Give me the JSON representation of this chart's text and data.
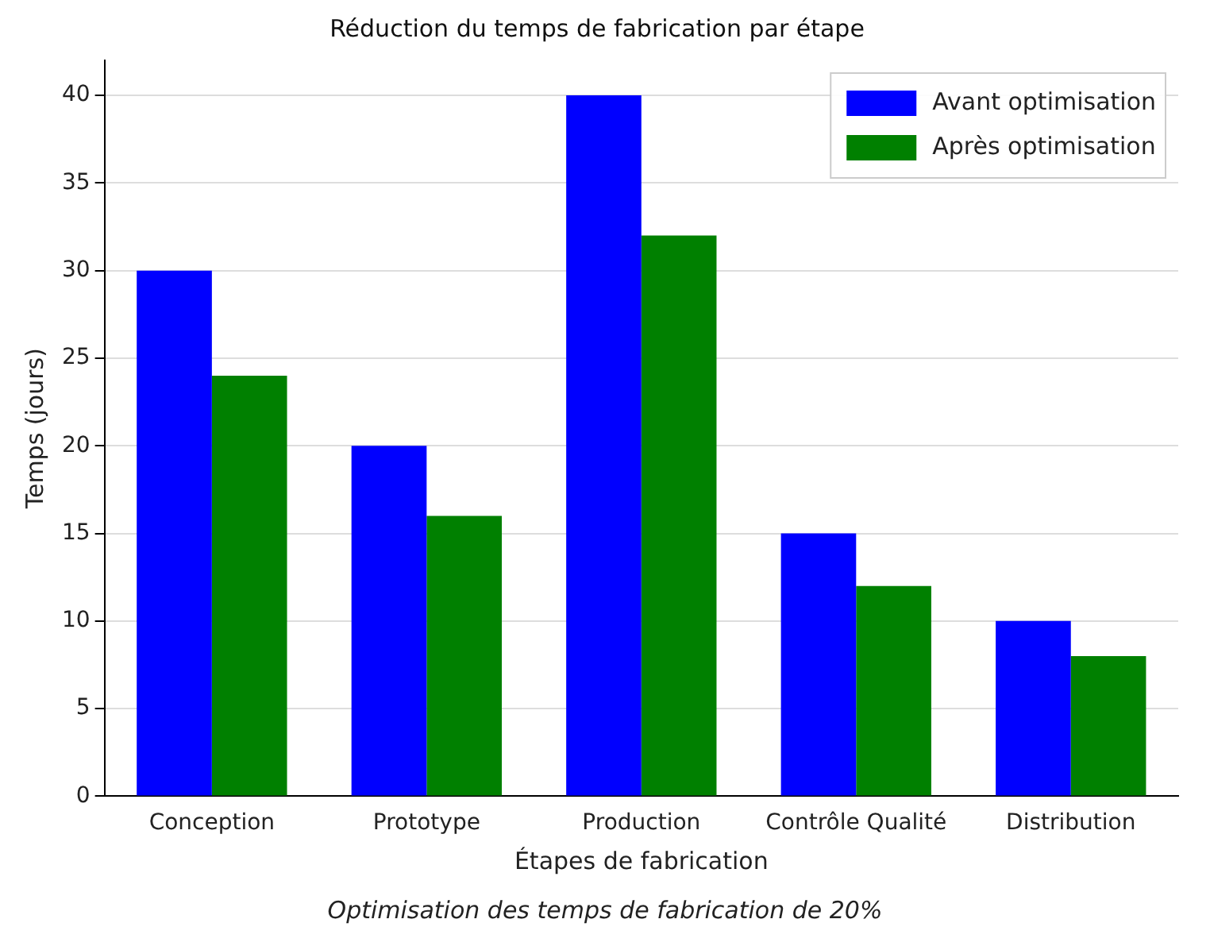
{
  "chart_data": {
    "type": "bar",
    "title": "Réduction du temps de fabrication par étape",
    "xlabel": "Étapes de fabrication",
    "ylabel": "Temps (jours)",
    "categories": [
      "Conception",
      "Prototype",
      "Production",
      "Contrôle Qualité",
      "Distribution"
    ],
    "series": [
      {
        "name": "Avant optimisation",
        "color": "#0000ff",
        "values": [
          30,
          20,
          40,
          15,
          10
        ]
      },
      {
        "name": "Après optimisation",
        "color": "#008000",
        "values": [
          24,
          16,
          32,
          12,
          8
        ]
      }
    ],
    "ylim": [
      0,
      42
    ],
    "yticks": [
      0,
      5,
      10,
      15,
      20,
      25,
      30,
      35,
      40
    ],
    "grid": "y",
    "legend": "top right",
    "annotations": [
      "Optimisation des temps de fabrication de 20%"
    ]
  }
}
